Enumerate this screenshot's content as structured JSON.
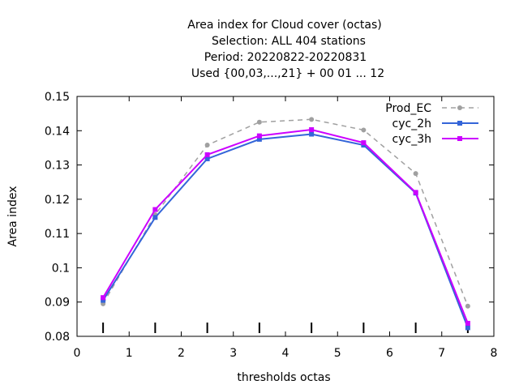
{
  "chart_data": {
    "type": "line",
    "title_lines": [
      "Area index  for Cloud cover (octas)",
      "Selection: ALL    404 stations",
      "Period: 20220822-20220831",
      "Used {00,03,...,21} + 00 01 ... 12"
    ],
    "xlabel": "thresholds octas",
    "ylabel": "Area index",
    "xlim": [
      0,
      8
    ],
    "ylim": [
      0.08,
      0.15
    ],
    "x_ticks": [
      0,
      1,
      2,
      3,
      4,
      5,
      6,
      7,
      8
    ],
    "y_ticks": [
      0.08,
      0.09,
      0.1,
      0.11,
      0.12,
      0.13,
      0.14,
      0.15
    ],
    "x_tick_labels": [
      "0",
      "1",
      "2",
      "3",
      "4",
      "5",
      "6",
      "7",
      "8"
    ],
    "y_tick_labels": [
      "0.08",
      "0.09",
      "0.1",
      "0.11",
      "0.12",
      "0.13",
      "0.14",
      "0.15"
    ],
    "threshold_markers": [
      0.5,
      1.5,
      2.5,
      3.5,
      4.5,
      5.5,
      6.5,
      7.5
    ],
    "grid": false,
    "legend_position": "top-right",
    "x": [
      0.5,
      1.5,
      2.5,
      3.5,
      4.5,
      5.5,
      6.5,
      7.5
    ],
    "series": [
      {
        "name": "Prod_EC",
        "color": "#a0a0a0",
        "dashed": true,
        "marker": "circle",
        "values": [
          0.0895,
          0.1155,
          0.1358,
          0.1425,
          0.1433,
          0.1402,
          0.1275,
          0.0888
        ]
      },
      {
        "name": "cyc_2h",
        "color": "#3465d9",
        "dashed": false,
        "marker": "square",
        "values": [
          0.0905,
          0.1147,
          0.1318,
          0.1375,
          0.139,
          0.1358,
          0.1218,
          0.0825
        ]
      },
      {
        "name": "cyc_3h",
        "color": "#cc00ff",
        "dashed": false,
        "marker": "square",
        "values": [
          0.0913,
          0.117,
          0.133,
          0.1385,
          0.1403,
          0.1365,
          0.122,
          0.0838
        ]
      }
    ]
  }
}
